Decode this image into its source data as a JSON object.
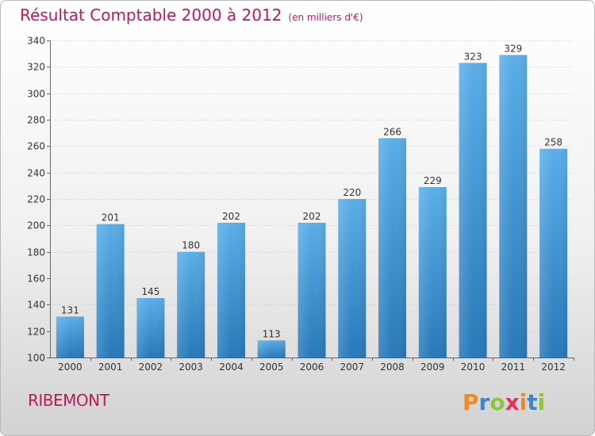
{
  "header": {
    "title": "Résultat Comptable 2000 à 2012",
    "subtitle": "(en milliers d'€)"
  },
  "footer": {
    "commune": "RIBEMONT",
    "logo_text": "Proxiti",
    "logo_letters": [
      {
        "ch": "P",
        "color": "#f08c1e"
      },
      {
        "ch": "r",
        "color": "#3a86c8"
      },
      {
        "ch": "o",
        "color": "#8cc63f"
      },
      {
        "ch": "x",
        "color": "#e2335b"
      },
      {
        "ch": "i",
        "color": "#f08c1e"
      },
      {
        "ch": "t",
        "color": "#3a86c8"
      },
      {
        "ch": "i",
        "color": "#8cc63f"
      }
    ]
  },
  "colors": {
    "bar_top": "#5aaee8",
    "bar_bottom": "#2878b8",
    "title": "#c2185b"
  },
  "chart_data": {
    "type": "bar",
    "title": "Résultat Comptable 2000 à 2012",
    "subtitle": "(en milliers d'€)",
    "categories": [
      "2000",
      "2001",
      "2002",
      "2003",
      "2004",
      "2005",
      "2006",
      "2007",
      "2008",
      "2009",
      "2010",
      "2011",
      "2012"
    ],
    "values": [
      131,
      201,
      145,
      180,
      202,
      113,
      202,
      220,
      266,
      229,
      323,
      329,
      258
    ],
    "ylim": [
      100,
      340
    ],
    "yticks": [
      100,
      120,
      140,
      160,
      180,
      200,
      220,
      240,
      260,
      280,
      300,
      320,
      340
    ],
    "grid": true,
    "xlabel": "",
    "ylabel": ""
  }
}
